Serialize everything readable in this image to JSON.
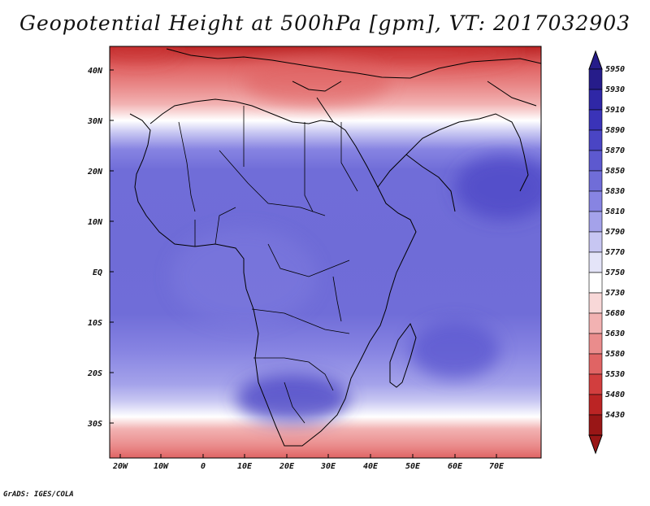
{
  "title": "Geopotential Height at 500hPa [gpm], VT: 2017032903",
  "footer": "GrADS: IGES/COLA",
  "lat_labels": [
    "40N",
    "30N",
    "20N",
    "10N",
    "EQ",
    "10S",
    "20S",
    "30S"
  ],
  "lon_labels": [
    "20W",
    "10W",
    "0",
    "10E",
    "20E",
    "30E",
    "40E",
    "50E",
    "60E",
    "70E"
  ],
  "colorbar": {
    "levels": [
      "5950",
      "5930",
      "5910",
      "5890",
      "5870",
      "5850",
      "5830",
      "5810",
      "5790",
      "5770",
      "5750",
      "5730",
      "5680",
      "5630",
      "5580",
      "5530",
      "5480",
      "5430"
    ],
    "colors": [
      "#261c8a",
      "#2f27a6",
      "#3a33b8",
      "#4a45c4",
      "#5d59cf",
      "#706dd8",
      "#8784e2",
      "#a4a2ea",
      "#c7c6f2",
      "#e4e4f8",
      "#ffffff",
      "#f8d8d8",
      "#f2b2b2",
      "#ea8c8c",
      "#e06464",
      "#d23e3e",
      "#bb2424",
      "#991616"
    ]
  },
  "chart_data": {
    "type": "heatmap",
    "title": "Geopotential Height at 500hPa [gpm], VT: 2017032903",
    "variable": "Geopotential Height at 500hPa",
    "units": "gpm",
    "valid_time": "2017032903",
    "lon_range": [
      -22,
      79
    ],
    "lat_range": [
      -37,
      45
    ],
    "lon_ticks": [
      "20W",
      "10W",
      "0",
      "10E",
      "20E",
      "30E",
      "40E",
      "50E",
      "60E",
      "70E"
    ],
    "lat_ticks": [
      "40N",
      "30N",
      "20N",
      "10N",
      "EQ",
      "10S",
      "20S",
      "30S"
    ],
    "colorbar_levels": [
      5430,
      5480,
      5530,
      5580,
      5630,
      5680,
      5730,
      5750,
      5770,
      5790,
      5810,
      5830,
      5850,
      5870,
      5890,
      5910,
      5930,
      5950
    ],
    "colors": {
      "low": "#991616",
      "high": "#261c8a"
    }
  }
}
